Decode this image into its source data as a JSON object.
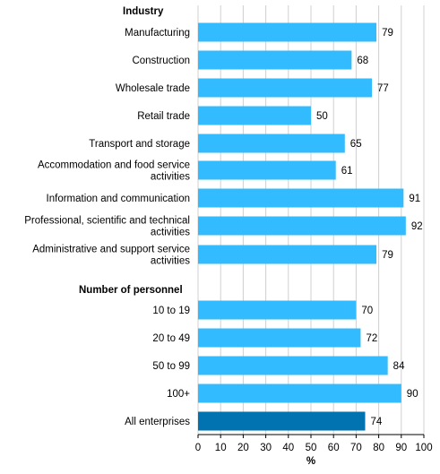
{
  "chart_data": {
    "type": "bar",
    "orientation": "horizontal",
    "xlabel": "%",
    "xlim": [
      0,
      100
    ],
    "xticks": [
      "0",
      "10",
      "20",
      "30",
      "40",
      "50",
      "60",
      "70",
      "80",
      "90",
      "100"
    ],
    "grid": true,
    "groups": [
      {
        "title": "Industry",
        "items": [
          {
            "label": [
              "Manufacturing"
            ],
            "value": 79
          },
          {
            "label": [
              "Construction"
            ],
            "value": 68
          },
          {
            "label": [
              "Wholesale trade"
            ],
            "value": 77
          },
          {
            "label": [
              "Retail trade"
            ],
            "value": 50
          },
          {
            "label": [
              "Transport and storage"
            ],
            "value": 65
          },
          {
            "label": [
              "Accommodation and food service",
              "activities"
            ],
            "value": 61
          },
          {
            "label": [
              "Information and communication"
            ],
            "value": 91
          },
          {
            "label": [
              "Professional, scientific and technical",
              "activities"
            ],
            "value": 92
          },
          {
            "label": [
              "Administrative and support service",
              "activities"
            ],
            "value": 79
          }
        ]
      },
      {
        "title": "Number of personnel",
        "items": [
          {
            "label": [
              "10 to 19"
            ],
            "value": 70
          },
          {
            "label": [
              "20 to 49"
            ],
            "value": 72
          },
          {
            "label": [
              "50 to 99"
            ],
            "value": 84
          },
          {
            "label": [
              "100+"
            ],
            "value": 90
          },
          {
            "label": [
              "All enterprises"
            ],
            "value": 74,
            "highlight": true
          }
        ]
      }
    ],
    "colors": {
      "bar": "#33bbff",
      "highlight": "#0073b0"
    }
  }
}
